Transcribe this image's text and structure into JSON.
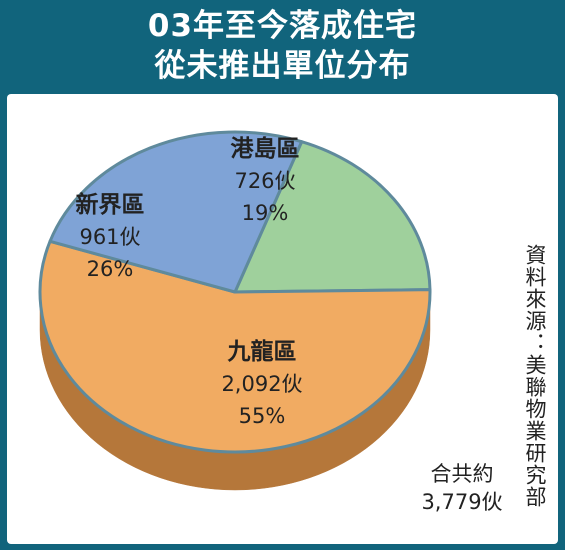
{
  "title_lines": [
    "03年至今落成住宅",
    "從未推出單位分布"
  ],
  "source": "資料來源：美聯物業研究部",
  "total": {
    "label": "合共約",
    "value": "3,779伙"
  },
  "chart_data": {
    "type": "pie",
    "title": "03年至今落成住宅從未推出單位分布",
    "slices": [
      {
        "name": "港島區",
        "units": 726,
        "units_label": "726伙",
        "percent": 19,
        "percent_label": "19%",
        "color": "#9fd09c",
        "side_color": "#6fa86b"
      },
      {
        "name": "九龍區",
        "units": 2092,
        "units_label": "2,092伙",
        "percent": 55,
        "percent_label": "55%",
        "color": "#f1ab62",
        "side_color": "#b5773a"
      },
      {
        "name": "新界區",
        "units": 961,
        "units_label": "961伙",
        "percent": 26,
        "percent_label": "26%",
        "color": "#7fa3d6",
        "side_color": "#56769f"
      }
    ]
  }
}
